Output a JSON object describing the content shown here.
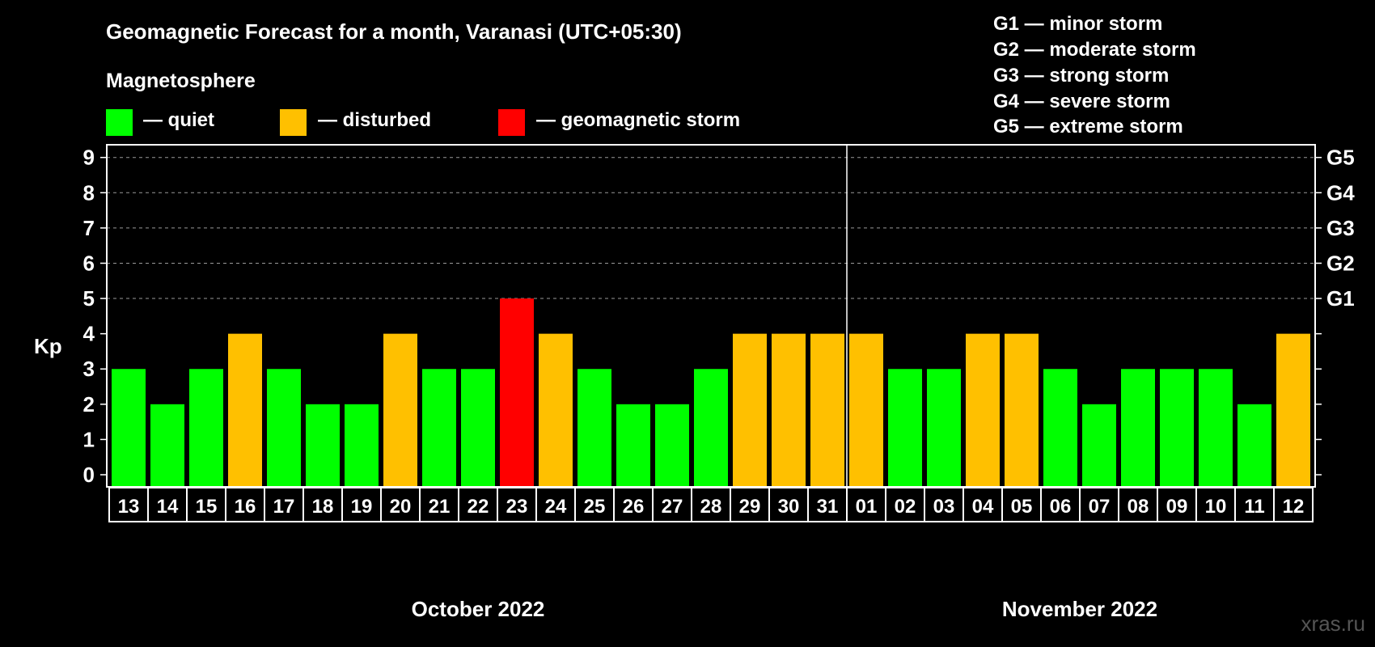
{
  "title": "Geomagnetic Forecast for a month, Varanasi (UTC+05:30)",
  "subtitle": "Magnetosphere",
  "legend": [
    {
      "label": "— quiet",
      "color": "#00ff00"
    },
    {
      "label": "— disturbed",
      "color": "#ffc000"
    },
    {
      "label": "— geomagnetic storm",
      "color": "#ff0000"
    }
  ],
  "g_scale": [
    "G1 — minor storm",
    "G2 — moderate storm",
    "G3 — strong storm",
    "G4 — severe storm",
    "G5 — extreme storm"
  ],
  "watermark": "xras.ru",
  "chart_data": {
    "type": "bar",
    "ylabel": "Kp",
    "ylim": [
      0,
      9
    ],
    "yticks": [
      "0",
      "1",
      "2",
      "3",
      "4",
      "5",
      "6",
      "7",
      "8",
      "9"
    ],
    "right_ticks": [
      {
        "kp": 5,
        "label": "G1"
      },
      {
        "kp": 6,
        "label": "G2"
      },
      {
        "kp": 7,
        "label": "G3"
      },
      {
        "kp": 8,
        "label": "G4"
      },
      {
        "kp": 9,
        "label": "G5"
      }
    ],
    "grid": "dashed horizontal at 5-9",
    "categories": [
      "13",
      "14",
      "15",
      "16",
      "17",
      "18",
      "19",
      "20",
      "21",
      "22",
      "23",
      "24",
      "25",
      "26",
      "27",
      "28",
      "29",
      "30",
      "31",
      "01",
      "02",
      "03",
      "04",
      "05",
      "06",
      "07",
      "08",
      "09",
      "10",
      "11",
      "12"
    ],
    "values": [
      3,
      2,
      3,
      4,
      3,
      2,
      2,
      4,
      3,
      3,
      5,
      4,
      3,
      2,
      2,
      3,
      4,
      4,
      4,
      4,
      3,
      3,
      4,
      4,
      3,
      2,
      3,
      3,
      3,
      2,
      4
    ],
    "months": [
      {
        "label": "October 2022",
        "from": 0,
        "to": 18
      },
      {
        "label": "November 2022",
        "from": 19,
        "to": 30
      }
    ],
    "colors": {
      "quiet": "#00ff00",
      "disturbed": "#ffc000",
      "storm": "#ff0000"
    }
  }
}
